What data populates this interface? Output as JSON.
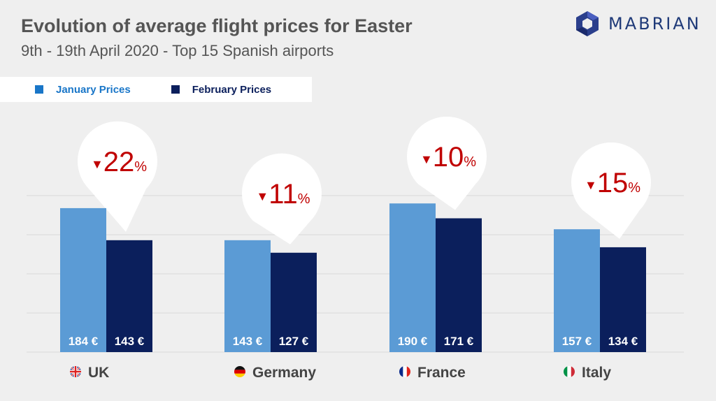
{
  "title": "Evolution of average flight prices for Easter",
  "subtitle": "9th - 19th April 2020 - Top 15 Spanish airports",
  "logo": {
    "text": "MABRIAN",
    "icon": "hexagon-logo-icon"
  },
  "colors": {
    "january": "#5b9bd5",
    "february": "#0b1f5c",
    "decrease": "#c00000",
    "grid": "#d9d9d9",
    "text_dark": "#444444"
  },
  "legend": [
    {
      "label": "January Prices",
      "color": "#1976c8"
    },
    {
      "label": "February Prices",
      "color": "#0b1f5c"
    }
  ],
  "chart_data": {
    "type": "bar",
    "categories": [
      "UK",
      "Germany",
      "France",
      "Italy"
    ],
    "series": [
      {
        "name": "January Prices",
        "values": [
          184,
          143,
          190,
          157
        ]
      },
      {
        "name": "February Prices",
        "values": [
          143,
          127,
          171,
          134
        ]
      }
    ],
    "value_labels": {
      "january": [
        "184 €",
        "143 €",
        "190 €",
        "157 €"
      ],
      "february": [
        "143 €",
        "127 €",
        "171 €",
        "134 €"
      ]
    },
    "changes": [
      {
        "arrow": "▼",
        "value": "22",
        "unit": "%"
      },
      {
        "arrow": "▼",
        "value": "11",
        "unit": "%"
      },
      {
        "arrow": "▼",
        "value": "10",
        "unit": "%"
      },
      {
        "arrow": "▼",
        "value": "15",
        "unit": "%"
      }
    ],
    "flags": [
      "uk-flag-icon",
      "germany-flag-icon",
      "france-flag-icon",
      "italy-flag-icon"
    ],
    "ylim": [
      0,
      200
    ],
    "grid": true,
    "legend_position": "top-left"
  }
}
